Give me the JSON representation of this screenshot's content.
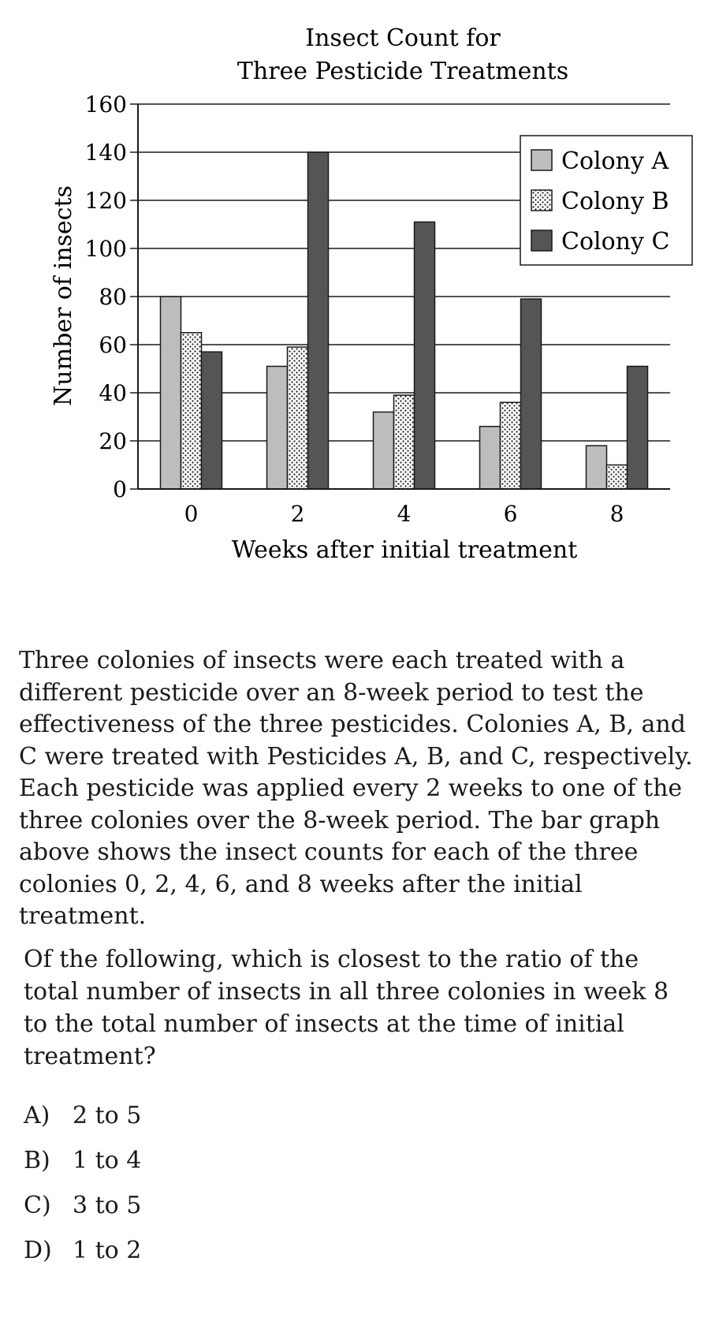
{
  "chart_data": {
    "type": "bar",
    "title": [
      "Insect Count for",
      "Three Pesticide Treatments"
    ],
    "xlabel": "Weeks after initial treatment",
    "ylabel": "Number of insects",
    "categories": [
      "0",
      "2",
      "4",
      "6",
      "8"
    ],
    "series": [
      {
        "name": "Colony A",
        "values": [
          80,
          51,
          32,
          26,
          18
        ],
        "fill": "light-gray"
      },
      {
        "name": "Colony B",
        "values": [
          65,
          59,
          39,
          36,
          10
        ],
        "fill": "dotted"
      },
      {
        "name": "Colony C",
        "values": [
          57,
          140,
          111,
          79,
          51
        ],
        "fill": "dark-gray"
      }
    ],
    "ylim": [
      0,
      160
    ],
    "yticks": [
      "0",
      "20",
      "40",
      "60",
      "80",
      "100",
      "120",
      "140",
      "160"
    ],
    "grid": true,
    "legend": "top-right",
    "colors": {
      "colony_a": "#bdbdbd",
      "colony_b": "#ffffff",
      "colony_c": "#555555",
      "outline": "#1a1a1a"
    }
  },
  "passage": "Three colonies of insects were each treated with a different pesticide over an 8-week period to test the effectiveness of the three pesticides. Colonies A, B, and C were treated with Pesticides A, B, and C, respectively. Each pesticide was applied every 2 weeks to one of the three colonies over the 8-week period. The bar graph above shows the insect counts for each of the three colonies 0, 2, 4, 6, and 8 weeks after the initial treatment.",
  "question": "Of the following, which is closest to the ratio of the total number of insects in all three colonies in week 8 to the total number of insects at the time of initial treatment?",
  "choices": [
    {
      "letter": "A)",
      "text": "2 to 5"
    },
    {
      "letter": "B)",
      "text": "1 to 4"
    },
    {
      "letter": "C)",
      "text": "3 to 5"
    },
    {
      "letter": "D)",
      "text": "1 to 2"
    }
  ]
}
